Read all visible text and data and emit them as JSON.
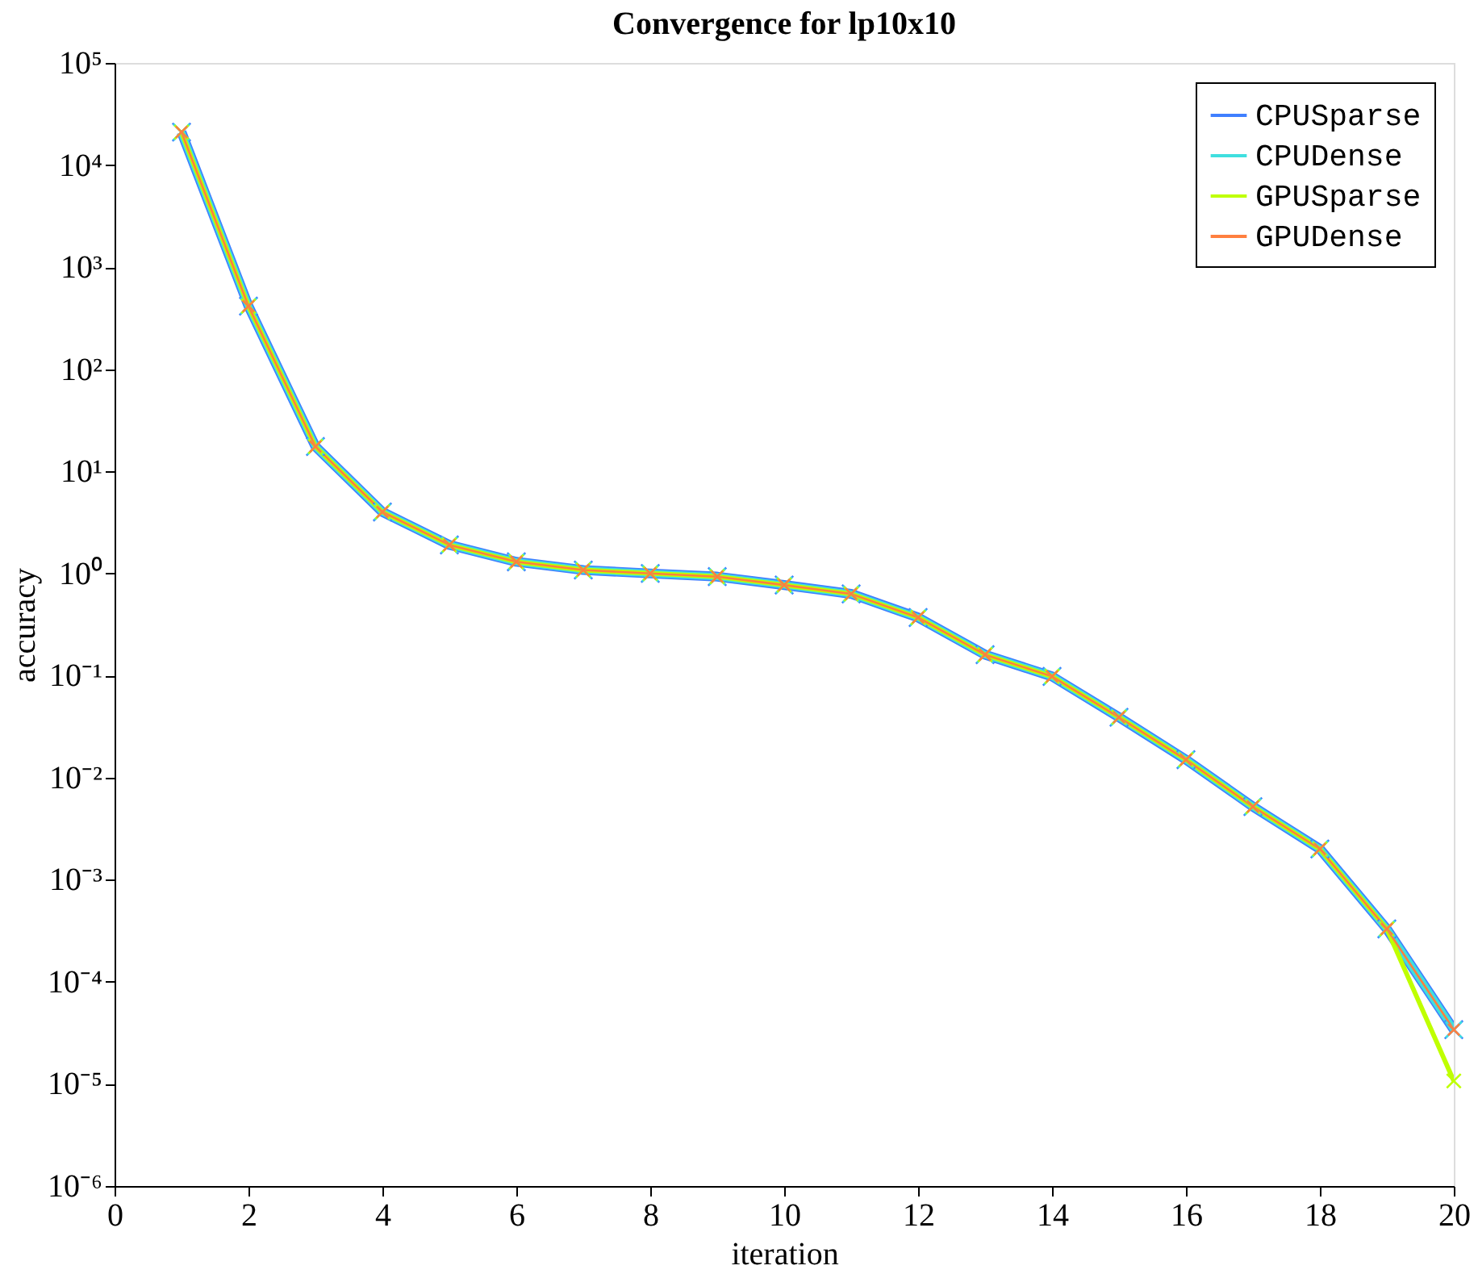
{
  "chart_data": {
    "type": "line",
    "title": "Convergence for lp10x10",
    "xlabel": "iteration",
    "ylabel": "accuracy",
    "x": [
      1,
      2,
      3,
      4,
      5,
      6,
      7,
      8,
      9,
      10,
      11,
      12,
      13,
      14,
      15,
      16,
      17,
      18,
      19,
      20
    ],
    "series": [
      {
        "name": "CPUSparse",
        "color": "#3f7fff",
        "values": [
          21000,
          415,
          17.5,
          4,
          1.9,
          1.3,
          1.08,
          1.0,
          0.93,
          0.77,
          0.63,
          0.37,
          0.16,
          0.098,
          0.039,
          0.015,
          0.0052,
          0.002,
          0.00033,
          3.4e-05
        ]
      },
      {
        "name": "CPUDense",
        "color": "#3fdfdf",
        "values": [
          21000,
          415,
          17.5,
          4,
          1.9,
          1.3,
          1.08,
          1.0,
          0.93,
          0.77,
          0.63,
          0.37,
          0.16,
          0.098,
          0.039,
          0.015,
          0.0052,
          0.002,
          0.00033,
          3.4e-05
        ]
      },
      {
        "name": "GPUSparse",
        "color": "#bfff00",
        "values": [
          21000,
          415,
          17.5,
          4,
          1.9,
          1.3,
          1.08,
          1.0,
          0.93,
          0.77,
          0.63,
          0.37,
          0.16,
          0.098,
          0.039,
          0.015,
          0.0052,
          0.002,
          0.00033,
          1.07e-05
        ]
      },
      {
        "name": "GPUDense",
        "color": "#ff7f3f",
        "values": [
          21000,
          415,
          17.5,
          4,
          1.9,
          1.3,
          1.08,
          1.0,
          0.93,
          0.77,
          0.63,
          0.37,
          0.16,
          0.098,
          0.039,
          0.015,
          0.0052,
          0.002,
          0.00033,
          3.4e-05
        ]
      }
    ],
    "log": "y",
    "xlim": [
      0,
      20
    ],
    "xticks": [
      0,
      2,
      4,
      6,
      8,
      10,
      12,
      14,
      16,
      18,
      20
    ],
    "ylim": [
      1e-06,
      100000
    ],
    "yticks": [
      {
        "value": 1e-06,
        "label": "10⁻⁶"
      },
      {
        "value": 1e-05,
        "label": "10⁻⁵"
      },
      {
        "value": 0.0001,
        "label": "10⁻⁴"
      },
      {
        "value": 0.001,
        "label": "10⁻³"
      },
      {
        "value": 0.01,
        "label": "10⁻²"
      },
      {
        "value": 0.1,
        "label": "10⁻¹"
      },
      {
        "value": 1,
        "label": "10⁰"
      },
      {
        "value": 10,
        "label": "10¹"
      },
      {
        "value": 100,
        "label": "10²"
      },
      {
        "value": 1000,
        "label": "10³"
      },
      {
        "value": 10000,
        "label": "10⁴"
      },
      {
        "value": 100000,
        "label": "10⁵"
      }
    ],
    "grid": false,
    "legend": "top right",
    "marker": "cross",
    "line_style": "solid"
  }
}
